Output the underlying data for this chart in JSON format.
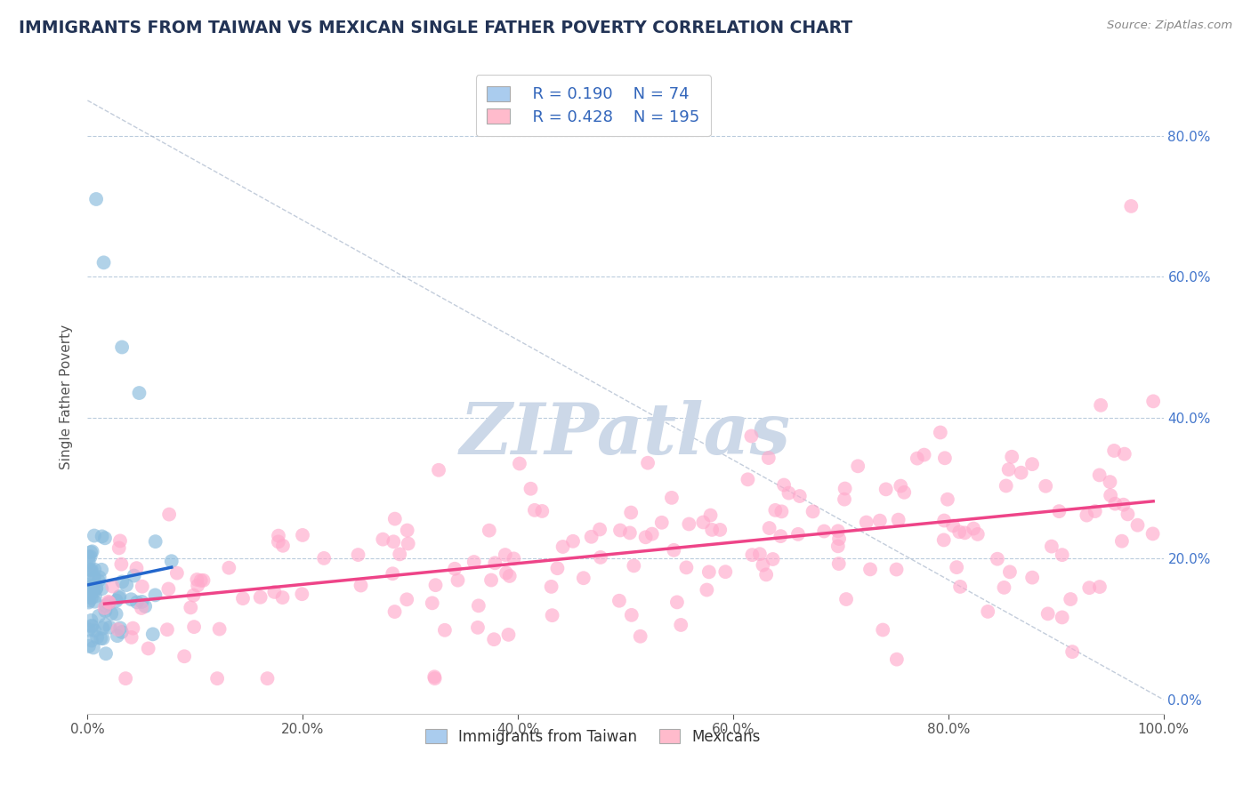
{
  "title": "IMMIGRANTS FROM TAIWAN VS MEXICAN SINGLE FATHER POVERTY CORRELATION CHART",
  "source_text": "Source: ZipAtlas.com",
  "ylabel": "Single Father Poverty",
  "watermark": "ZIPatlas",
  "legend_label_1": "Immigrants from Taiwan",
  "legend_label_2": "Mexicans",
  "R1": 0.19,
  "N1": 74,
  "R2": 0.428,
  "N2": 195,
  "color1": "#88bbdd",
  "color2": "#ffaacc",
  "color1_legend": "#aaccee",
  "color2_legend": "#ffbbcc",
  "trend1_color": "#2266cc",
  "trend2_color": "#ee4488",
  "xlim": [
    0.0,
    1.0
  ],
  "ylim": [
    -0.02,
    0.88
  ],
  "background_color": "#ffffff",
  "grid_color": "#bbccdd",
  "title_color": "#223355",
  "source_color": "#888888",
  "watermark_color": "#ccd8e8",
  "ytick_color": "#4477cc",
  "xtick_color": "#555555",
  "seed": 42
}
